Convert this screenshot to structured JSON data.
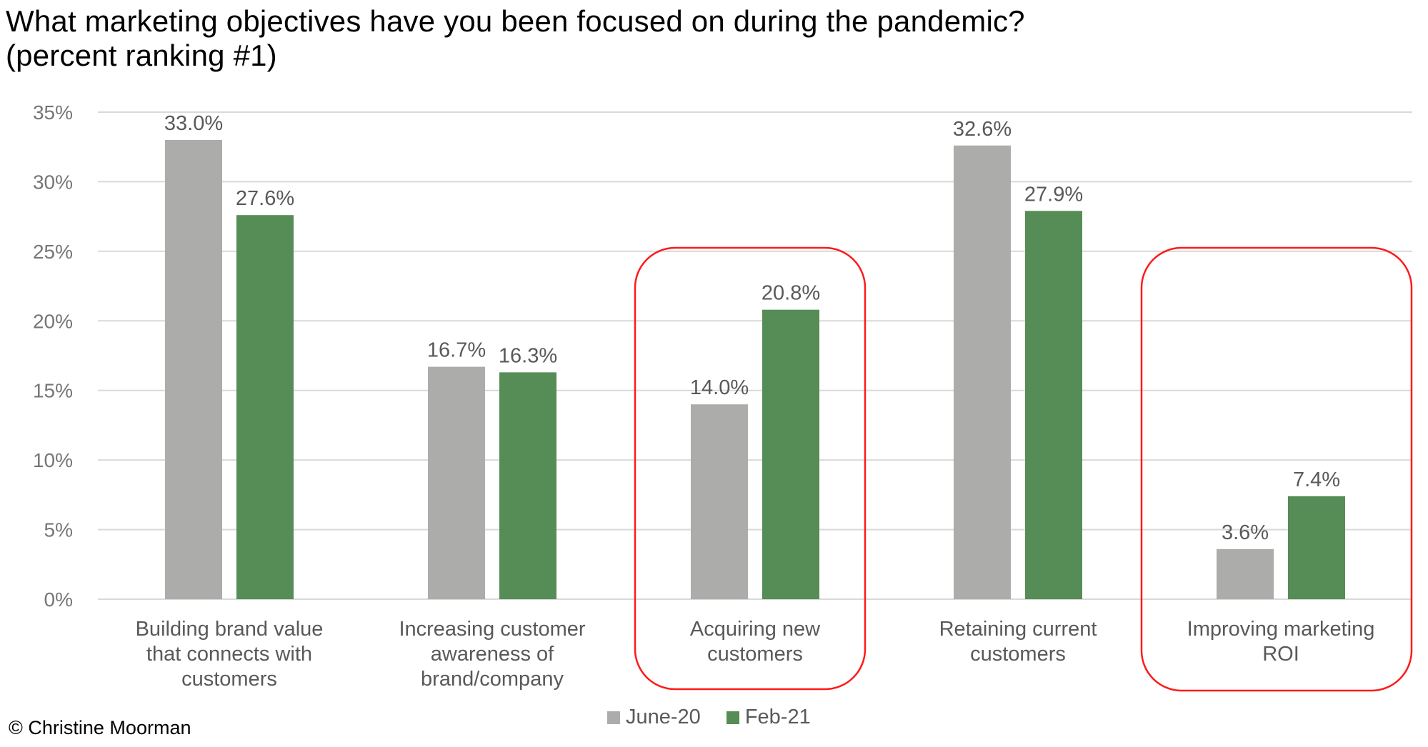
{
  "header": {
    "title_line1": "What marketing objectives have you been focused on during the pandemic?",
    "title_line2": "(percent ranking #1)"
  },
  "footer": {
    "copyright": "© Christine Moorman"
  },
  "colors": {
    "june": "#acacaa",
    "feb": "#568c55",
    "highlight": "#ff1a1a",
    "grid": "#d9d9d9"
  },
  "chart_data": {
    "type": "bar",
    "title": "What marketing objectives have you been focused on during the pandemic? (percent ranking #1)",
    "xlabel": "",
    "ylabel": "",
    "ylim": [
      0,
      35
    ],
    "y_ticks": [
      "0%",
      "5%",
      "10%",
      "15%",
      "20%",
      "25%",
      "30%",
      "35%"
    ],
    "y_tick_values": [
      0,
      5,
      10,
      15,
      20,
      25,
      30,
      35
    ],
    "grid": true,
    "legend_position": "bottom",
    "categories": [
      [
        "Building brand value",
        "that connects with",
        "customers"
      ],
      [
        "Increasing customer",
        "awareness of",
        "brand/company"
      ],
      [
        "Acquiring new",
        "customers"
      ],
      [
        "Retaining current",
        "customers"
      ],
      [
        "Improving marketing",
        "ROI"
      ]
    ],
    "highlighted_categories": [
      2,
      4
    ],
    "series": [
      {
        "name": "June-20",
        "values": [
          33.0,
          16.7,
          14.0,
          32.6,
          3.6
        ],
        "labels": [
          "33.0%",
          "16.7%",
          "14.0%",
          "32.6%",
          "3.6%"
        ]
      },
      {
        "name": "Feb-21",
        "values": [
          27.6,
          16.3,
          20.8,
          27.9,
          7.4
        ],
        "labels": [
          "27.6%",
          "16.3%",
          "20.8%",
          "27.9%",
          "7.4%"
        ]
      }
    ]
  }
}
